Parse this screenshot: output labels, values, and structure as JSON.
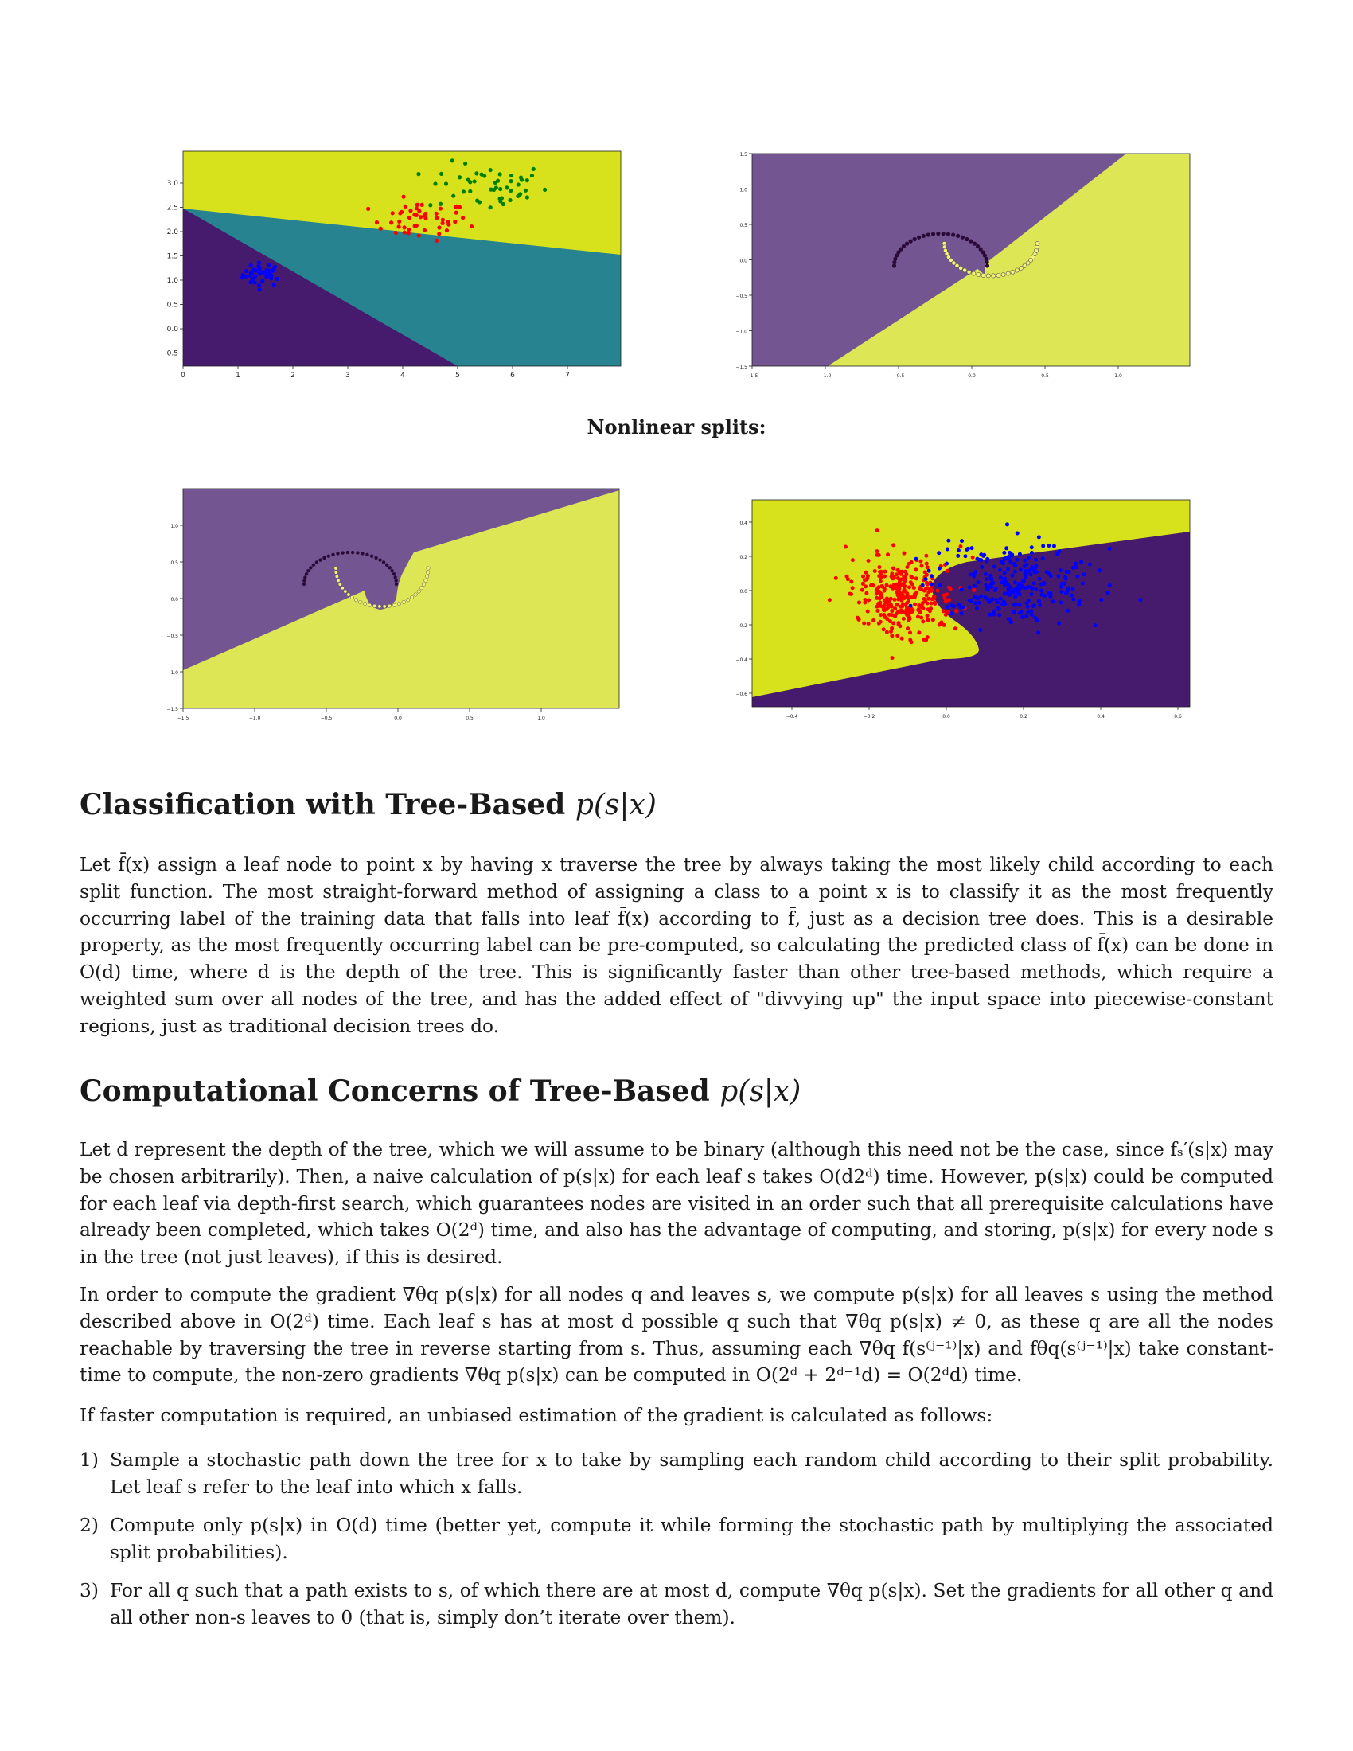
{
  "figures": {
    "top_left": {
      "x_ticks": [
        "0",
        "1",
        "2",
        "3",
        "4",
        "5",
        "6",
        "7"
      ],
      "y_ticks": [
        "3.0",
        "2.5",
        "2.0",
        "1.5",
        "1.0",
        "0.5",
        "0.0",
        "−0.5"
      ],
      "colors": {
        "region_a": "#d7e11c",
        "region_b": "#26838f",
        "region_c": "#461a6c",
        "class_1": "#0000ff",
        "class_2": "#ff0000",
        "class_3": "#008000"
      }
    },
    "top_right": {
      "x_ticks": [
        "−1.5",
        "−1.0",
        "−0.5",
        "0.0",
        "0.5",
        "1.0"
      ],
      "y_ticks": [
        "1.5",
        "1.0",
        "0.5",
        "0.0",
        "−0.5",
        "−1.0",
        "−1.5"
      ],
      "colors": {
        "region_a": "#735691",
        "region_b": "#dde755"
      }
    },
    "caption": "Nonlinear splits:",
    "bottom_left": {
      "x_ticks": [
        "−1.5",
        "−1.0",
        "−0.5",
        "0.0",
        "0.5",
        "1.0"
      ],
      "y_ticks": [
        "1.0",
        "0.5",
        "0.0",
        "−0.5",
        "−1.0",
        "−1.5"
      ],
      "colors": {
        "region_a": "#735691",
        "region_b": "#dde755"
      }
    },
    "bottom_right": {
      "x_ticks": [
        "−0.4",
        "−0.2",
        "0.0",
        "0.2",
        "0.4",
        "0.6"
      ],
      "y_ticks": [
        "0.4",
        "0.2",
        "0.0",
        "−0.2",
        "−0.4",
        "−0.6"
      ],
      "colors": {
        "region_a": "#d7e11c",
        "region_b": "#461a6c",
        "class_1": "#ff0000",
        "class_2": "#0000ff"
      }
    }
  },
  "sections": [
    {
      "title": "Classification with Tree-Based ",
      "title_math": "p(s|x)",
      "paragraphs": [
        "Let f̄(x) assign a leaf node to point x by having x traverse the tree by always taking the most likely child according to each split function. The most straight-forward method of assigning a class to a point x is to classify it as the most frequently occurring label of the training data that falls into leaf f̄(x) according to f̄, just as a decision tree does. This is a desirable property, as the most frequently occurring label can be pre-computed, so calculating the predicted class of f̄(x) can be done in O(d) time, where d is the depth of the tree. This is significantly faster than other tree-based methods, which require a weighted sum over all nodes of the tree, and has the added effect of \"divvying up\" the input space into piecewise-constant regions, just as traditional decision trees do."
      ]
    },
    {
      "title": "Computational Concerns of Tree-Based ",
      "title_math": "p(s|x)",
      "paragraphs": [
        "Let d represent the depth of the tree, which we will assume to be binary (although this need not be the case, since fₛ′(s|x) may be chosen arbitrarily). Then, a naive calculation of p(s|x) for each leaf s takes O(d2ᵈ) time. However, p(s|x) could be computed for each leaf via depth-first search, which guarantees nodes are visited in an order such that all prerequisite calculations have already been completed, which takes O(2ᵈ) time, and also has the advantage of computing, and storing, p(s|x) for every node s in the tree (not just leaves), if this is desired.",
        "In order to compute the gradient ∇θq p(s|x) for all nodes q and leaves s, we compute p(s|x) for all leaves s using the method described above in O(2ᵈ) time. Each leaf s has at most d possible q such that ∇θq p(s|x) ≠ 0, as these q are all the nodes reachable by traversing the tree in reverse starting from s. Thus, assuming each ∇θq f(s⁽ʲ⁻¹⁾|x) and fθq(s⁽ʲ⁻¹⁾|x) take constant-time to compute, the non-zero gradients ∇θq p(s|x) can be computed in O(2ᵈ + 2ᵈ⁻¹d) = O(2ᵈd) time.",
        "If faster computation is required, an unbiased estimation of the gradient is calculated as follows:"
      ],
      "list": [
        {
          "num": "1)",
          "text": "Sample a stochastic path down the tree for x to take by sampling each random child according to their split probability. Let leaf s refer to the leaf into which x falls."
        },
        {
          "num": "2)",
          "text": "Compute only p(s|x) in O(d) time (better yet, compute it while forming the stochastic path by multiplying the associated split probabilities)."
        },
        {
          "num": "3)",
          "text": "For all q such that a path exists to s, of which there are at most d, compute ∇θq p(s|x). Set the gradients for all other q and all other non-s leaves to 0 (that is, simply don’t iterate over them)."
        }
      ]
    }
  ]
}
